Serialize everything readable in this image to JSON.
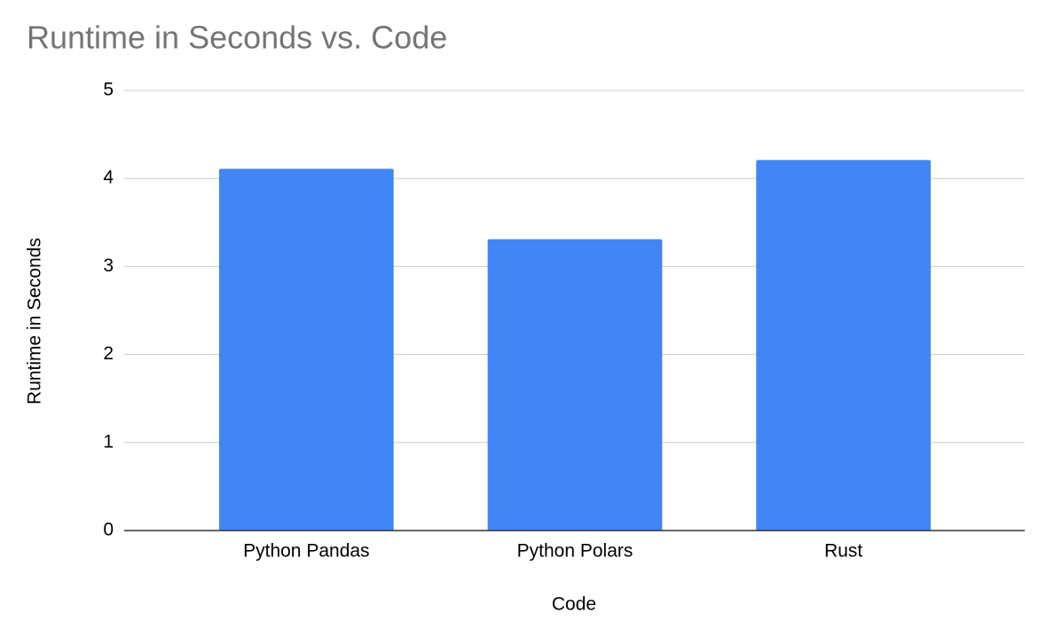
{
  "chart_data": {
    "type": "bar",
    "title": "Runtime in Seconds vs. Code",
    "x_label": "Code",
    "y_label": "Runtime in Seconds",
    "categories": [
      "Python Pandas",
      "Python Polars",
      "Rust"
    ],
    "values": [
      4.11,
      3.31,
      4.21
    ],
    "color": "#4285f4",
    "ylim": [
      0,
      5
    ],
    "yticks": [
      0,
      1,
      2,
      3,
      4,
      5
    ],
    "grid": true
  }
}
